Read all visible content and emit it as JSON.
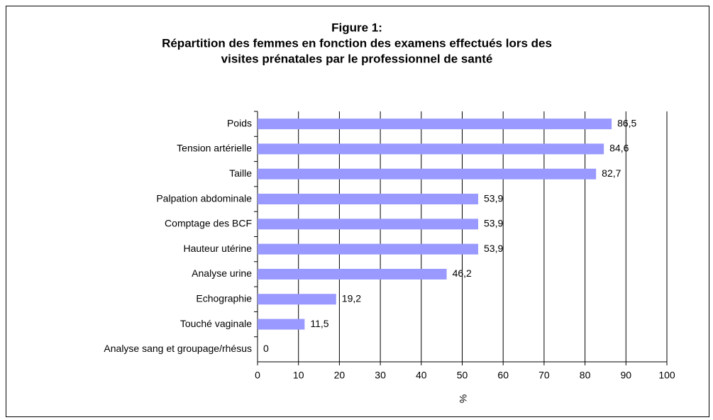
{
  "chart_data": {
    "type": "bar",
    "orientation": "horizontal",
    "title": [
      "Figure 1:",
      "Répartition des femmes en fonction des examens effectués lors des",
      "visites prénatales par le professionnel de santé"
    ],
    "categories": [
      "Poids",
      "Tension artérielle",
      "Taille",
      "Palpation abdominale",
      "Comptage des BCF",
      "Hauteur utérine",
      "Analyse urine",
      "Echographie",
      "Touché vaginale",
      "Analyse sang et groupage/rhésus"
    ],
    "values": [
      86.5,
      84.6,
      82.7,
      53.9,
      53.9,
      53.9,
      46.2,
      19.2,
      11.5,
      0
    ],
    "value_labels": [
      "86,5",
      "84,6",
      "82,7",
      "53,9",
      "53,9",
      "53,9",
      "46,2",
      "19,2",
      "11,5",
      "0"
    ],
    "color": "#9999ff",
    "xlabel": "%",
    "xlim": [
      0,
      100
    ],
    "xticks": [
      0,
      10,
      20,
      30,
      40,
      50,
      60,
      70,
      80,
      90,
      100
    ],
    "grid": true
  }
}
